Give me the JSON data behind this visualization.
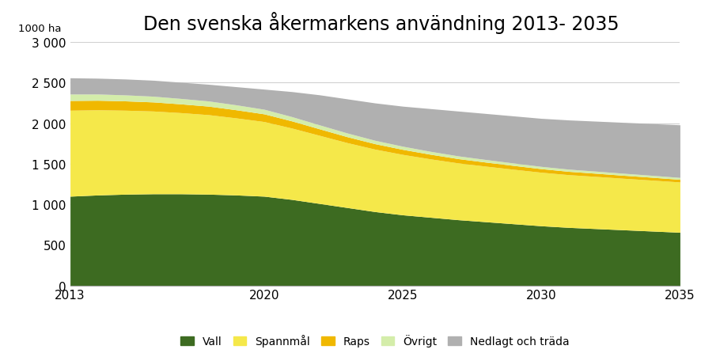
{
  "title": "Den svenska åkermarkens användning 2013- 2035",
  "ylabel": "1000 ha",
  "years": [
    2013,
    2014,
    2015,
    2016,
    2017,
    2018,
    2019,
    2020,
    2021,
    2022,
    2023,
    2024,
    2025,
    2026,
    2027,
    2028,
    2029,
    2030,
    2031,
    2032,
    2033,
    2034,
    2035
  ],
  "vall": [
    1100,
    1115,
    1125,
    1130,
    1130,
    1125,
    1115,
    1100,
    1060,
    1010,
    960,
    910,
    870,
    840,
    810,
    785,
    760,
    735,
    715,
    700,
    685,
    670,
    655
  ],
  "spannmal": [
    1060,
    1050,
    1035,
    1020,
    1000,
    980,
    950,
    920,
    880,
    840,
    800,
    770,
    745,
    720,
    700,
    685,
    672,
    660,
    650,
    643,
    635,
    628,
    620
  ],
  "raps": [
    120,
    118,
    115,
    112,
    108,
    105,
    100,
    95,
    88,
    80,
    73,
    67,
    62,
    57,
    53,
    50,
    47,
    44,
    41,
    39,
    37,
    35,
    33
  ],
  "ovrigt": [
    80,
    77,
    74,
    71,
    67,
    64,
    61,
    57,
    53,
    49,
    46,
    42,
    39,
    36,
    34,
    32,
    30,
    28,
    27,
    26,
    25,
    24,
    23
  ],
  "nedlagt": [
    200,
    195,
    196,
    197,
    200,
    206,
    224,
    248,
    309,
    371,
    421,
    461,
    494,
    527,
    553,
    568,
    581,
    593,
    607,
    617,
    628,
    638,
    649
  ],
  "colors": {
    "vall": "#3d6b21",
    "spannmal": "#f5e84a",
    "raps": "#f0b800",
    "ovrigt": "#d4edaa",
    "nedlagt": "#b0b0b0"
  },
  "legend_labels": [
    "Vall",
    "Spannmål",
    "Raps",
    "Övrigt",
    "Nedlagt och träda"
  ],
  "ylim": [
    0,
    3000
  ],
  "yticks": [
    0,
    500,
    1000,
    1500,
    2000,
    2500,
    3000
  ],
  "ytick_labels": [
    "0",
    "500",
    "1 000",
    "1 500",
    "2 000",
    "2 500",
    "3 000"
  ],
  "xlim": [
    2013,
    2035
  ],
  "xticks": [
    2013,
    2020,
    2025,
    2030,
    2035
  ],
  "xtick_labels": [
    "2013",
    "2020",
    "2025",
    "2030",
    "2035"
  ],
  "background_color": "#ffffff",
  "title_fontsize": 17,
  "axis_fontsize": 11
}
